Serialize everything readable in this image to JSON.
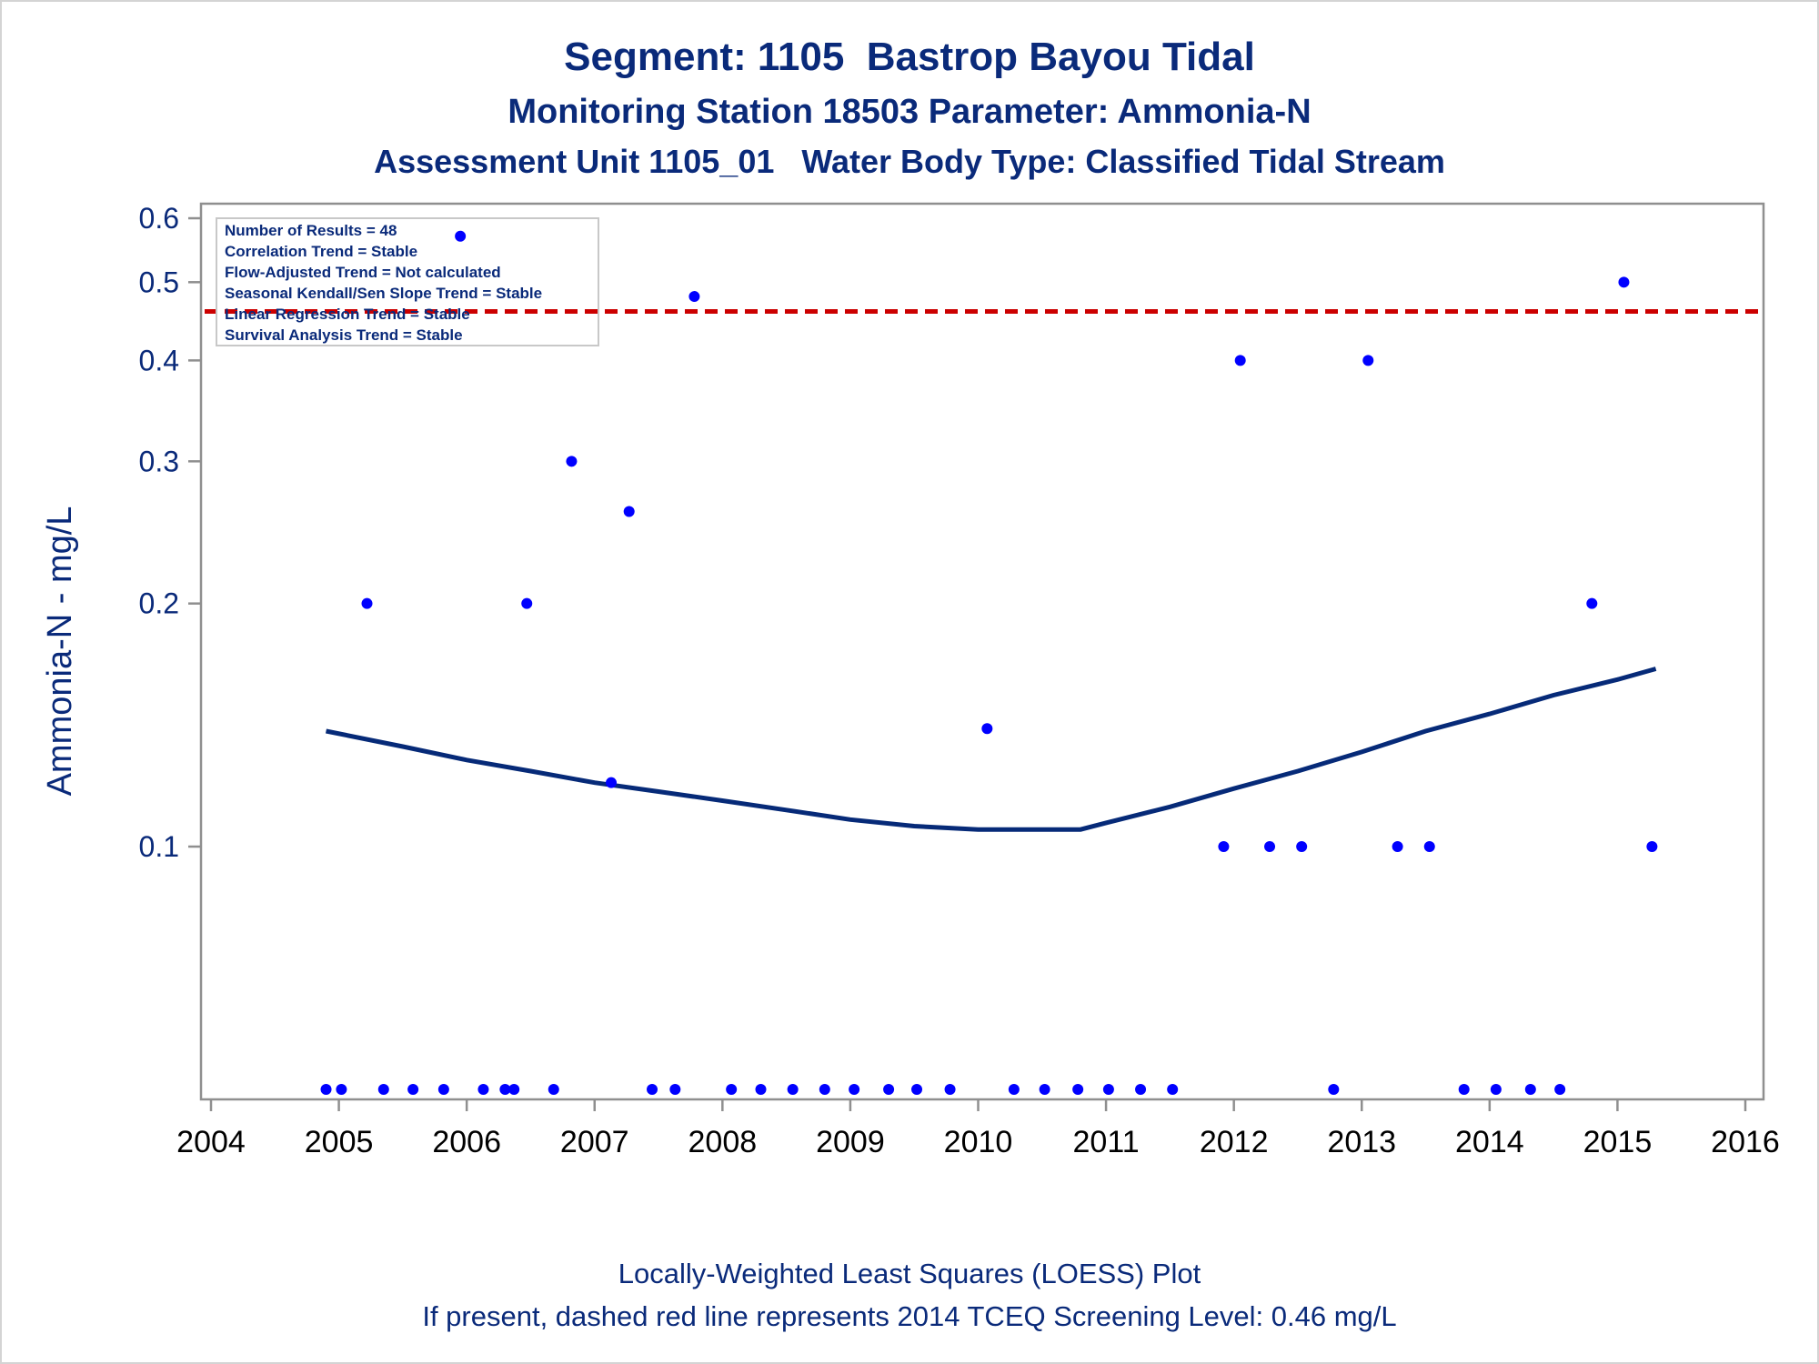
{
  "title": "Segment: 1105  Bastrop Bayou Tidal",
  "subtitle1": "Monitoring Station 18503 Parameter: Ammonia-N",
  "subtitle2": "Assessment Unit 1105_01   Water Body Type: Classified Tidal Stream",
  "footnote1": "Locally-Weighted Least Squares (LOESS) Plot",
  "footnote2": "If present, dashed red line represents 2014 TCEQ Screening Level: 0.46 mg/L",
  "stats": [
    "Number of Results = 48",
    "Correlation Trend = Stable",
    "Flow-Adjusted Trend = Not calculated",
    "Seasonal Kendall/Sen Slope Trend = Stable",
    "Linear Regression Trend = Stable",
    "Survival Analysis Trend = Stable"
  ],
  "colors": {
    "text": "#0a2a7a",
    "points": "#0000ff",
    "loess": "#062a78",
    "screening": "#cc0000",
    "axes": "#8f8f8f"
  },
  "chart_data": {
    "type": "scatter",
    "ylabel": "Ammonia-N - mg/L",
    "xlabel": "",
    "y_scale": "log",
    "xlim": [
      2004,
      2016
    ],
    "ylim": [
      0.05,
      0.62
    ],
    "x_ticks": [
      2004,
      2005,
      2006,
      2007,
      2008,
      2009,
      2010,
      2011,
      2012,
      2013,
      2014,
      2015,
      2016
    ],
    "y_ticks": [
      0.1,
      0.2,
      0.3,
      0.4,
      0.5,
      0.6
    ],
    "grid": false,
    "screening_level": 0.46,
    "points": [
      {
        "x": 2004.9,
        "y": 0.05
      },
      {
        "x": 2005.02,
        "y": 0.05
      },
      {
        "x": 2005.22,
        "y": 0.2
      },
      {
        "x": 2005.35,
        "y": 0.05
      },
      {
        "x": 2005.58,
        "y": 0.05
      },
      {
        "x": 2005.82,
        "y": 0.05
      },
      {
        "x": 2005.95,
        "y": 0.57
      },
      {
        "x": 2006.13,
        "y": 0.05
      },
      {
        "x": 2006.3,
        "y": 0.05
      },
      {
        "x": 2006.37,
        "y": 0.05
      },
      {
        "x": 2006.47,
        "y": 0.2
      },
      {
        "x": 2006.68,
        "y": 0.05
      },
      {
        "x": 2006.82,
        "y": 0.3
      },
      {
        "x": 2007.13,
        "y": 0.12
      },
      {
        "x": 2007.27,
        "y": 0.26
      },
      {
        "x": 2007.45,
        "y": 0.05
      },
      {
        "x": 2007.63,
        "y": 0.05
      },
      {
        "x": 2007.78,
        "y": 0.48
      },
      {
        "x": 2008.07,
        "y": 0.05
      },
      {
        "x": 2008.3,
        "y": 0.05
      },
      {
        "x": 2008.55,
        "y": 0.05
      },
      {
        "x": 2008.8,
        "y": 0.05
      },
      {
        "x": 2009.03,
        "y": 0.05
      },
      {
        "x": 2009.3,
        "y": 0.05
      },
      {
        "x": 2009.52,
        "y": 0.05
      },
      {
        "x": 2009.78,
        "y": 0.05
      },
      {
        "x": 2010.07,
        "y": 0.14
      },
      {
        "x": 2010.28,
        "y": 0.05
      },
      {
        "x": 2010.52,
        "y": 0.05
      },
      {
        "x": 2010.78,
        "y": 0.05
      },
      {
        "x": 2011.02,
        "y": 0.05
      },
      {
        "x": 2011.27,
        "y": 0.05
      },
      {
        "x": 2011.52,
        "y": 0.05
      },
      {
        "x": 2011.92,
        "y": 0.1
      },
      {
        "x": 2012.05,
        "y": 0.4
      },
      {
        "x": 2012.28,
        "y": 0.1
      },
      {
        "x": 2012.53,
        "y": 0.1
      },
      {
        "x": 2012.78,
        "y": 0.05
      },
      {
        "x": 2013.05,
        "y": 0.4
      },
      {
        "x": 2013.28,
        "y": 0.1
      },
      {
        "x": 2013.53,
        "y": 0.1
      },
      {
        "x": 2013.8,
        "y": 0.05
      },
      {
        "x": 2014.05,
        "y": 0.05
      },
      {
        "x": 2014.32,
        "y": 0.05
      },
      {
        "x": 2014.55,
        "y": 0.05
      },
      {
        "x": 2014.8,
        "y": 0.2
      },
      {
        "x": 2015.05,
        "y": 0.5
      },
      {
        "x": 2015.27,
        "y": 0.1
      }
    ],
    "loess": [
      {
        "x": 2004.9,
        "y": 0.139
      },
      {
        "x": 2005.5,
        "y": 0.133
      },
      {
        "x": 2006.0,
        "y": 0.128
      },
      {
        "x": 2006.5,
        "y": 0.124
      },
      {
        "x": 2007.0,
        "y": 0.12
      },
      {
        "x": 2007.5,
        "y": 0.117
      },
      {
        "x": 2008.0,
        "y": 0.114
      },
      {
        "x": 2008.5,
        "y": 0.111
      },
      {
        "x": 2009.0,
        "y": 0.108
      },
      {
        "x": 2009.5,
        "y": 0.106
      },
      {
        "x": 2010.0,
        "y": 0.105
      },
      {
        "x": 2010.5,
        "y": 0.105
      },
      {
        "x": 2010.8,
        "y": 0.105
      },
      {
        "x": 2011.0,
        "y": 0.107
      },
      {
        "x": 2011.5,
        "y": 0.112
      },
      {
        "x": 2012.0,
        "y": 0.118
      },
      {
        "x": 2012.5,
        "y": 0.124
      },
      {
        "x": 2013.0,
        "y": 0.131
      },
      {
        "x": 2013.5,
        "y": 0.139
      },
      {
        "x": 2014.0,
        "y": 0.146
      },
      {
        "x": 2014.5,
        "y": 0.154
      },
      {
        "x": 2015.0,
        "y": 0.161
      },
      {
        "x": 2015.3,
        "y": 0.166
      }
    ]
  }
}
